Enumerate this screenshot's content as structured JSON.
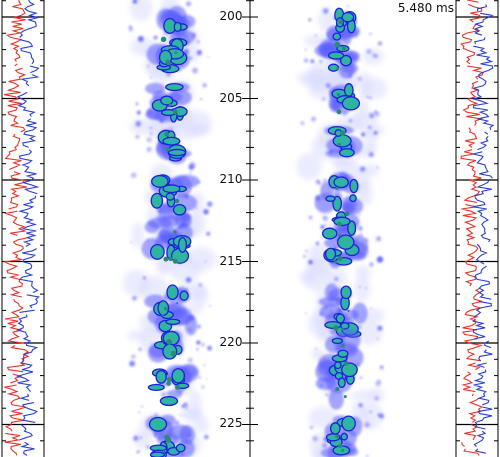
{
  "timestamp": "5.480 ms",
  "axis": {
    "tick_labels": [
      "200",
      "205",
      "210",
      "215",
      "220",
      "225"
    ]
  },
  "colors": {
    "frame": "#000000",
    "trace_a": "#e8322b",
    "trace_b": "#2b3fd6",
    "blob_outer": "#d9dbff",
    "blob_mid": "#5a5cff",
    "blob_edge": "#1f1fe0",
    "blob_core": "#2fb4a0",
    "blob_hot": "#2a8a76"
  }
}
